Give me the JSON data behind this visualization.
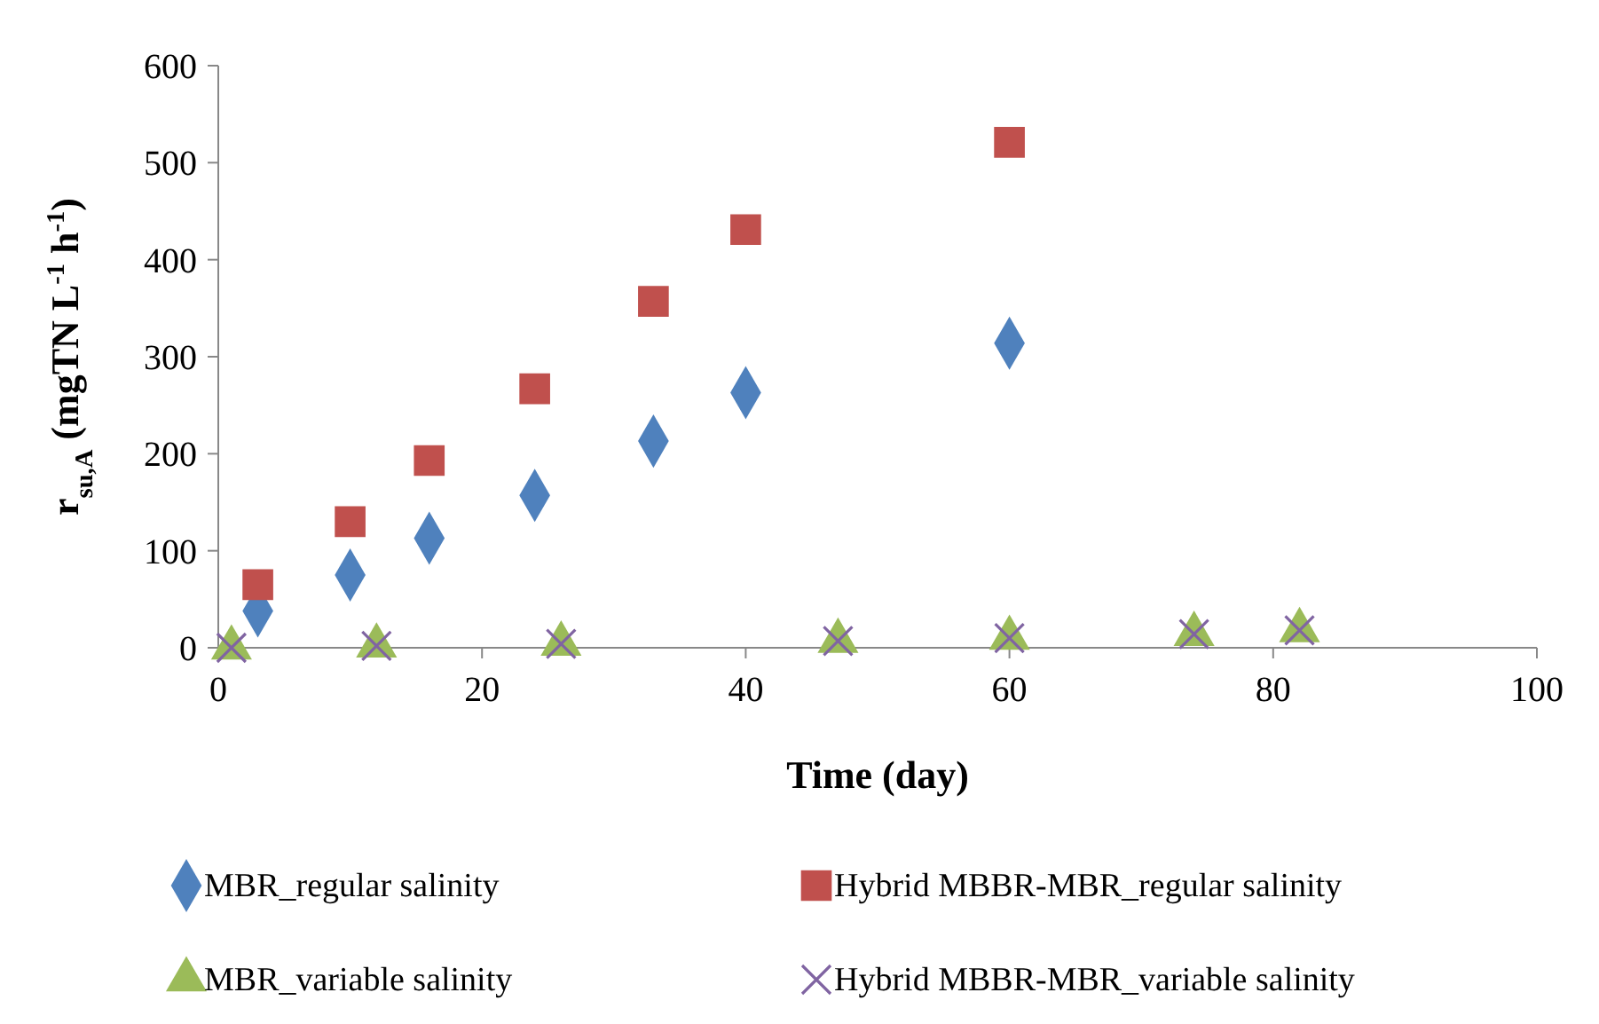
{
  "chart_data": {
    "type": "scatter",
    "xlabel": "Time (day)",
    "ylabel": "r$_{su,A}$ (mgTN L$^{-1}$ h$^{-1}$)",
    "xlim": [
      0,
      100
    ],
    "xticks": [
      0,
      20,
      40,
      60,
      80,
      100
    ],
    "ylim": [
      0,
      600
    ],
    "yticks": [
      0,
      100,
      200,
      300,
      400,
      500,
      600
    ],
    "grid": false,
    "legend": "bottom",
    "series": [
      {
        "name": "MBR_regular salinity",
        "color": "#4f81bd",
        "marker": "diamond",
        "x": [
          3,
          10,
          16,
          24,
          33,
          40,
          60
        ],
        "values": [
          38,
          75,
          113,
          157,
          213,
          263,
          314
        ]
      },
      {
        "name": "Hybrid MBBR-MBR_regular salinity",
        "color": "#c0504d",
        "marker": "square",
        "x": [
          3,
          10,
          16,
          24,
          33,
          40,
          60
        ],
        "values": [
          65,
          130,
          193,
          267,
          357,
          431,
          521
        ]
      },
      {
        "name": "MBR_variable salinity",
        "color": "#9bbb59",
        "marker": "triangle",
        "x": [
          1,
          12,
          26,
          47,
          60,
          74,
          82
        ],
        "values": [
          0,
          2,
          4,
          7,
          10,
          14,
          18
        ]
      },
      {
        "name": "Hybrid MBBR-MBR_variable salinity",
        "color": "#8064a2",
        "marker": "cross",
        "x": [
          1,
          12,
          26,
          47,
          60,
          74,
          82
        ],
        "values": [
          0,
          2,
          4,
          7,
          10,
          14,
          18
        ]
      }
    ]
  }
}
